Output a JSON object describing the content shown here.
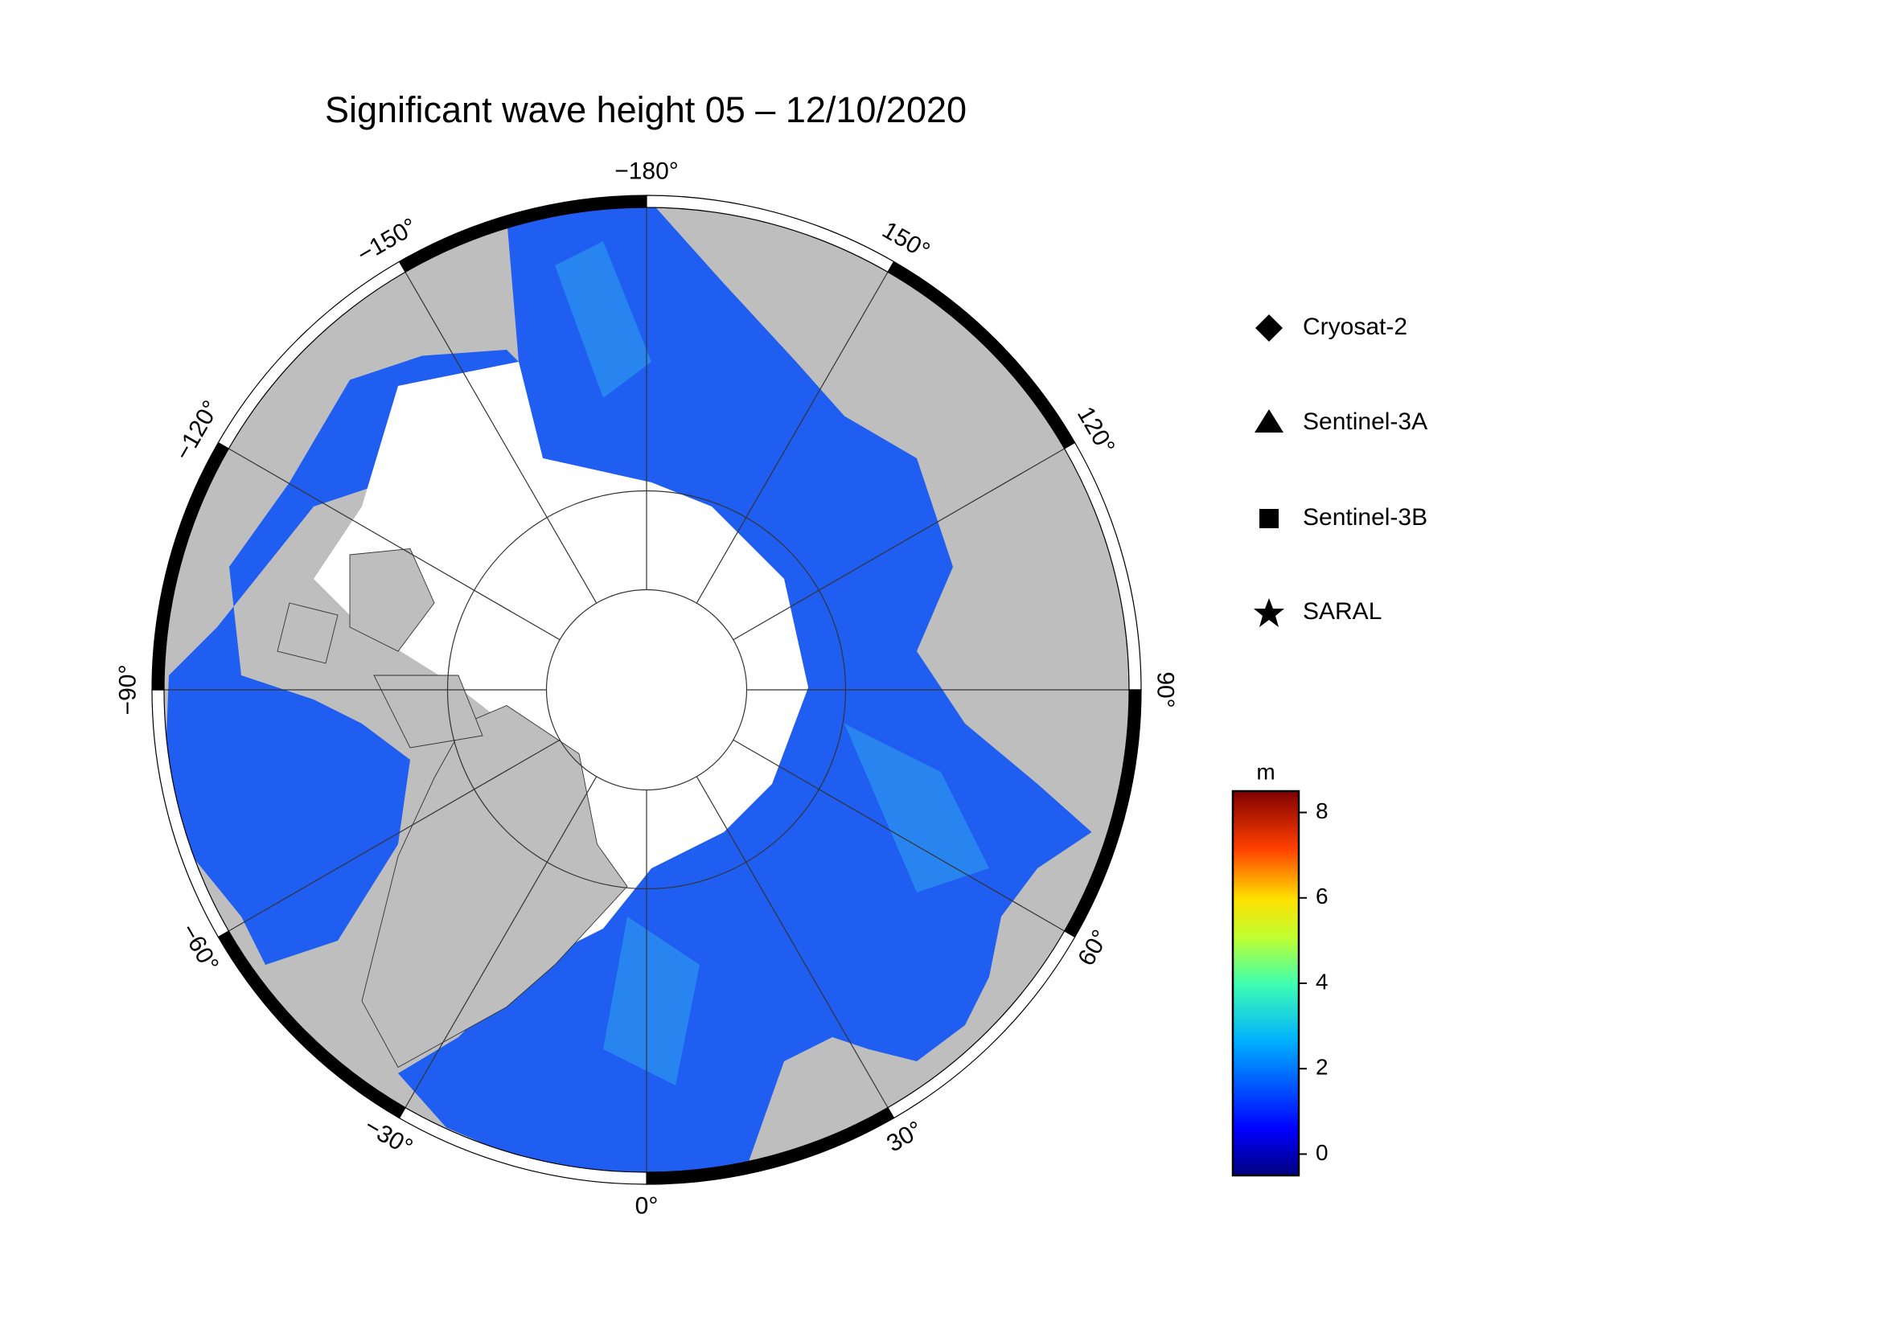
{
  "map": {
    "title": "Significant wave height 05 – 12/10/2020",
    "longitude_labels": [
      {
        "value": -180,
        "label": "−180°"
      },
      {
        "value": 150,
        "label": "150°"
      },
      {
        "value": 120,
        "label": "120°"
      },
      {
        "value": 90,
        "label": "90°"
      },
      {
        "value": 60,
        "label": "60°"
      },
      {
        "value": 30,
        "label": "30°"
      },
      {
        "value": 0,
        "label": "0°"
      },
      {
        "value": -30,
        "label": "−30°"
      },
      {
        "value": -60,
        "label": "−60°"
      },
      {
        "value": -90,
        "label": "−90°"
      },
      {
        "value": -120,
        "label": "−120°"
      },
      {
        "value": -150,
        "label": "−150°"
      }
    ],
    "legend": [
      "Cryosat-2",
      "Sentinel-3A",
      "Sentinel-3B",
      "SARAL"
    ],
    "colorbar": {
      "unit": "m",
      "lim": [
        -0.5,
        8.5
      ],
      "ticks": [
        0,
        2,
        4,
        6,
        8
      ]
    }
  }
}
